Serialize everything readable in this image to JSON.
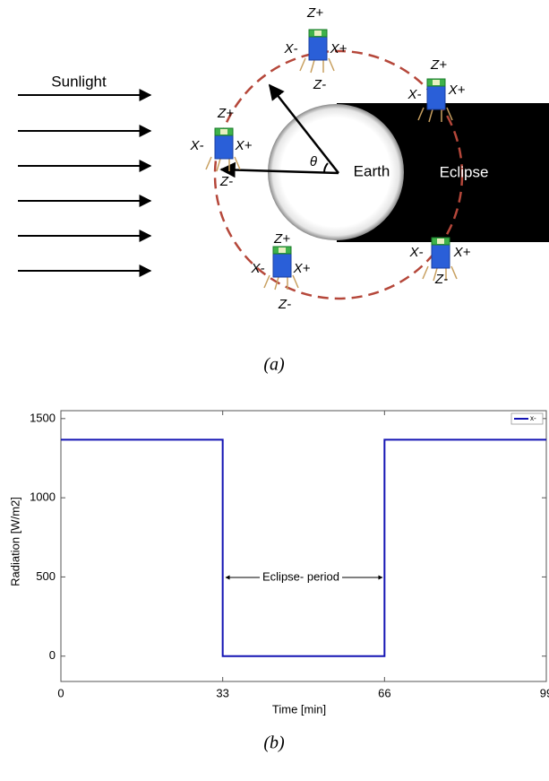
{
  "diagram": {
    "sunlight": "Sunlight",
    "earth": "Earth",
    "eclipse": "Eclipse",
    "angle": "θ",
    "satellites": [
      [
        "Z+",
        "X-",
        "X+",
        "Z-"
      ],
      [
        "Z+",
        "X-",
        "X+"
      ],
      [
        "Z+",
        "X-",
        "X+",
        "Z-"
      ],
      [
        "Z+",
        "X-",
        "X+",
        "Z-"
      ],
      [
        "X-",
        "X+",
        "Z-"
      ]
    ],
    "caption": "(a)"
  },
  "chart_data": {
    "type": "line",
    "xlabel": "Time [min]",
    "ylabel": "Radiation [W/m2]",
    "x": [
      0,
      33,
      33,
      66,
      66,
      99
    ],
    "series": [
      {
        "name": "x-",
        "color": "#1414b4",
        "values": [
          1367,
          1367,
          0,
          0,
          1367,
          1367
        ]
      }
    ],
    "xlim": [
      0,
      99
    ],
    "xticks": [
      0,
      33,
      66,
      99
    ],
    "ylim": [
      -160,
      1550
    ],
    "yticks": [
      0,
      500,
      1000,
      1500
    ],
    "annotation": "Eclipse- period",
    "legend": "upper right",
    "caption": "(b)"
  }
}
